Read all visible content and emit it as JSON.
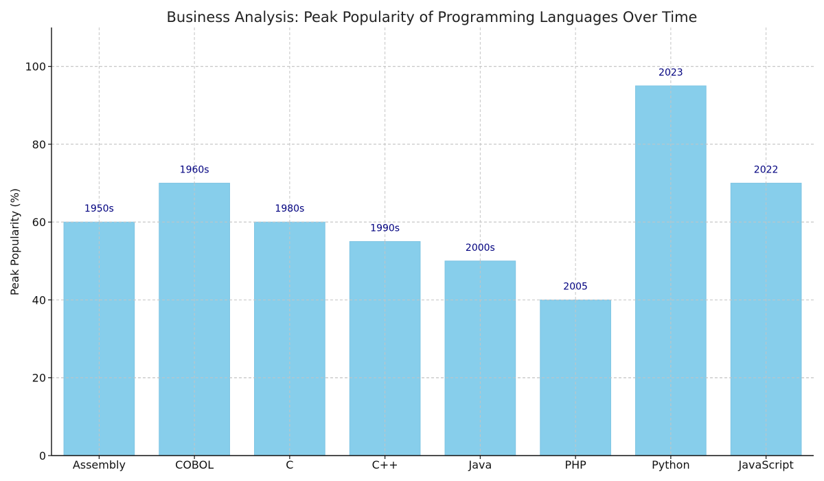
{
  "chart_data": {
    "type": "bar",
    "title": "Business Analysis: Peak Popularity of Programming Languages Over Time",
    "xlabel": "",
    "ylabel": "Peak Popularity (%)",
    "ylim": [
      0,
      110
    ],
    "yticks": [
      0,
      20,
      40,
      60,
      80,
      100
    ],
    "grid": true,
    "categories": [
      "Assembly",
      "COBOL",
      "C",
      "C++",
      "Java",
      "PHP",
      "Python",
      "JavaScript"
    ],
    "values": [
      60,
      70,
      60,
      55,
      50,
      40,
      95,
      70
    ],
    "bar_labels": [
      "1950s",
      "1960s",
      "1980s",
      "1990s",
      "2000s",
      "2005",
      "2023",
      "2022"
    ]
  },
  "colors": {
    "bar_fill": "#87CEEB",
    "bar_stroke": "#7ec4e3",
    "bar_label": "#00007f"
  }
}
